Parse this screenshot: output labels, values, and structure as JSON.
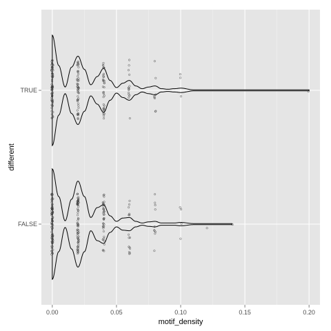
{
  "chart_data": {
    "type": "violin",
    "orientation": "horizontal",
    "title": "",
    "xlabel": "motif_density",
    "ylabel": "different",
    "xlim": [
      -0.0085,
      0.2085
    ],
    "x_ticks": [
      0.0,
      0.05,
      0.1,
      0.15,
      0.2
    ],
    "x_tick_labels": [
      "0.00",
      "0.05",
      "0.10",
      "0.15",
      "0.20"
    ],
    "categories": [
      "FALSE",
      "TRUE"
    ],
    "grid": true,
    "legend": "none",
    "colors": {
      "panel_bg": "#e5e5e5",
      "grid_major": "#ffffff",
      "grid_minor": "#f2f2f2",
      "violin_line": "#000000",
      "points": "#333333"
    },
    "groups": [
      {
        "category": "TRUE",
        "max": 0.2,
        "profile": [
          [
            0.0,
            1.0
          ],
          [
            0.005,
            0.45
          ],
          [
            0.01,
            0.06
          ],
          [
            0.015,
            0.42
          ],
          [
            0.02,
            0.62
          ],
          [
            0.025,
            0.38
          ],
          [
            0.03,
            0.1
          ],
          [
            0.035,
            0.25
          ],
          [
            0.04,
            0.4
          ],
          [
            0.045,
            0.18
          ],
          [
            0.05,
            0.05
          ],
          [
            0.055,
            0.13
          ],
          [
            0.06,
            0.18
          ],
          [
            0.065,
            0.08
          ],
          [
            0.07,
            0.03
          ],
          [
            0.075,
            0.06
          ],
          [
            0.08,
            0.08
          ],
          [
            0.085,
            0.03
          ],
          [
            0.09,
            0.02
          ],
          [
            0.095,
            0.03
          ],
          [
            0.1,
            0.04
          ],
          [
            0.11,
            0.01
          ],
          [
            0.2,
            0.01
          ]
        ],
        "points": [
          {
            "x": 0.0,
            "span": 0.55,
            "n": 70
          },
          {
            "x": 0.02,
            "span": 0.55,
            "n": 50
          },
          {
            "x": 0.04,
            "span": 0.55,
            "n": 35
          },
          {
            "x": 0.06,
            "span": 0.55,
            "n": 14
          },
          {
            "x": 0.08,
            "span": 0.55,
            "n": 8
          },
          {
            "x": 0.1,
            "span": 0.3,
            "n": 3
          },
          {
            "x": 0.2,
            "span": 0.05,
            "n": 1
          }
        ]
      },
      {
        "category": "FALSE",
        "max": 0.14,
        "profile": [
          [
            0.0,
            1.0
          ],
          [
            0.005,
            0.5
          ],
          [
            0.01,
            0.06
          ],
          [
            0.015,
            0.45
          ],
          [
            0.02,
            0.78
          ],
          [
            0.025,
            0.5
          ],
          [
            0.03,
            0.12
          ],
          [
            0.035,
            0.3
          ],
          [
            0.04,
            0.35
          ],
          [
            0.045,
            0.15
          ],
          [
            0.05,
            0.05
          ],
          [
            0.055,
            0.11
          ],
          [
            0.06,
            0.12
          ],
          [
            0.065,
            0.05
          ],
          [
            0.07,
            0.02
          ],
          [
            0.075,
            0.04
          ],
          [
            0.08,
            0.05
          ],
          [
            0.085,
            0.02
          ],
          [
            0.09,
            0.02
          ],
          [
            0.095,
            0.02
          ],
          [
            0.1,
            0.03
          ],
          [
            0.11,
            0.01
          ],
          [
            0.14,
            0.01
          ]
        ],
        "points": [
          {
            "x": 0.0,
            "span": 0.55,
            "n": 80
          },
          {
            "x": 0.02,
            "span": 0.55,
            "n": 70
          },
          {
            "x": 0.04,
            "span": 0.55,
            "n": 40
          },
          {
            "x": 0.06,
            "span": 0.55,
            "n": 15
          },
          {
            "x": 0.08,
            "span": 0.55,
            "n": 10
          },
          {
            "x": 0.1,
            "span": 0.35,
            "n": 4
          },
          {
            "x": 0.12,
            "span": 0.18,
            "n": 1
          },
          {
            "x": 0.14,
            "span": 0.02,
            "n": 1
          }
        ]
      }
    ]
  }
}
